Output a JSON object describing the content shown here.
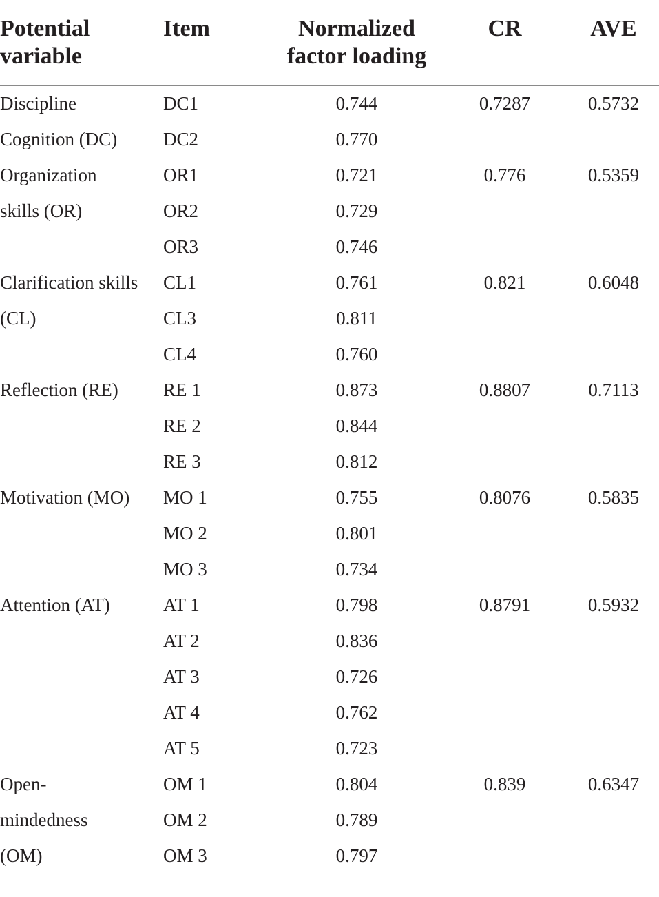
{
  "table": {
    "headers": {
      "variable": "Potential\nvariable",
      "item": "Item",
      "loading": "Normalized\nfactor loading",
      "cr": "CR",
      "ave": "AVE"
    },
    "rows": [
      {
        "variable": "Discipline",
        "item": "DC1",
        "loading": "0.744",
        "cr": "0.7287",
        "ave": "0.5732"
      },
      {
        "variable": "Cognition (DC)",
        "item": "DC2",
        "loading": "0.770",
        "cr": "",
        "ave": ""
      },
      {
        "variable": "Organization",
        "item": "OR1",
        "loading": "0.721",
        "cr": "0.776",
        "ave": "0.5359"
      },
      {
        "variable": "skills (OR)",
        "item": "OR2",
        "loading": "0.729",
        "cr": "",
        "ave": ""
      },
      {
        "variable": "",
        "item": "OR3",
        "loading": "0.746",
        "cr": "",
        "ave": ""
      },
      {
        "variable": "Clarification skills",
        "item": "CL1",
        "loading": "0.761",
        "cr": "0.821",
        "ave": "0.6048"
      },
      {
        "variable": "(CL)",
        "item": "CL3",
        "loading": "0.811",
        "cr": "",
        "ave": ""
      },
      {
        "variable": "",
        "item": "CL4",
        "loading": "0.760",
        "cr": "",
        "ave": ""
      },
      {
        "variable": "Reflection (RE)",
        "item": "RE 1",
        "loading": "0.873",
        "cr": "0.8807",
        "ave": "0.7113"
      },
      {
        "variable": "",
        "item": "RE 2",
        "loading": "0.844",
        "cr": "",
        "ave": ""
      },
      {
        "variable": "",
        "item": "RE 3",
        "loading": "0.812",
        "cr": "",
        "ave": ""
      },
      {
        "variable": "Motivation (MO)",
        "item": "MO 1",
        "loading": "0.755",
        "cr": "0.8076",
        "ave": "0.5835"
      },
      {
        "variable": "",
        "item": "MO 2",
        "loading": "0.801",
        "cr": "",
        "ave": ""
      },
      {
        "variable": "",
        "item": "MO 3",
        "loading": "0.734",
        "cr": "",
        "ave": ""
      },
      {
        "variable": "Attention (AT)",
        "item": "AT 1",
        "loading": "0.798",
        "cr": "0.8791",
        "ave": "0.5932"
      },
      {
        "variable": "",
        "item": "AT 2",
        "loading": "0.836",
        "cr": "",
        "ave": ""
      },
      {
        "variable": "",
        "item": "AT 3",
        "loading": "0.726",
        "cr": "",
        "ave": ""
      },
      {
        "variable": "",
        "item": "AT 4",
        "loading": "0.762",
        "cr": "",
        "ave": ""
      },
      {
        "variable": "",
        "item": "AT 5",
        "loading": "0.723",
        "cr": "",
        "ave": ""
      },
      {
        "variable": "Open-",
        "item": "OM 1",
        "loading": "0.804",
        "cr": "0.839",
        "ave": "0.6347"
      },
      {
        "variable": "mindedness",
        "item": "OM 2",
        "loading": "0.789",
        "cr": "",
        "ave": ""
      },
      {
        "variable": "(OM)",
        "item": "OM 3",
        "loading": "0.797",
        "cr": "",
        "ave": ""
      }
    ]
  }
}
